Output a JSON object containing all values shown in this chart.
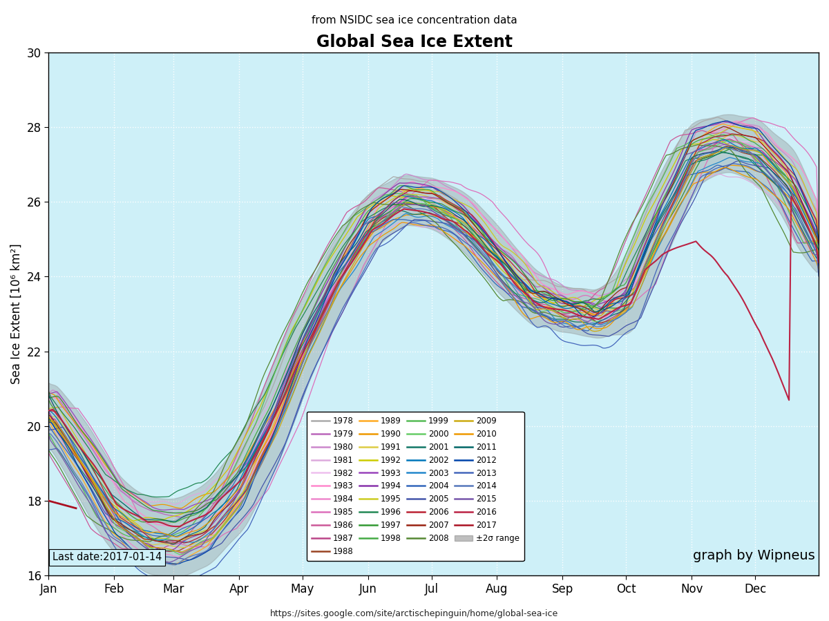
{
  "title": "Global Sea Ice Extent",
  "subtitle": "from NSIDC sea ice concentration data",
  "ylabel": "Sea Ice Extent [10⁶ km²]",
  "ylim": [
    16,
    30
  ],
  "yticks": [
    16,
    18,
    20,
    22,
    24,
    26,
    28,
    30
  ],
  "background_color": "#cef0f8",
  "last_date": "Last date:2017-01-14",
  "url": "https://sites.google.com/site/arctischepinguin/home/global-sea-ice",
  "graph_by": "graph by Wipneus",
  "months": [
    "Jan",
    "Feb",
    "Mar",
    "Apr",
    "May",
    "Jun",
    "Jul",
    "Aug",
    "Sep",
    "Oct",
    "Nov",
    "Dec"
  ],
  "month_starts": [
    0,
    31,
    59,
    90,
    120,
    151,
    181,
    212,
    243,
    273,
    304,
    334
  ],
  "year_colors": {
    "1978": "#aaaaaa",
    "1979": "#bb66bb",
    "1980": "#cc88cc",
    "1981": "#ddaadd",
    "1982": "#eec0ee",
    "1983": "#ff88cc",
    "1984": "#ee88cc",
    "1985": "#dd70bb",
    "1986": "#cc5898",
    "1987": "#bb4488",
    "1988": "#994422",
    "1989": "#ffaa22",
    "1990": "#ee9900",
    "1991": "#ddcc44",
    "1992": "#cccc00",
    "1993": "#9944bb",
    "1994": "#8833aa",
    "1995": "#cccc22",
    "1996": "#228855",
    "1997": "#339933",
    "1998": "#44aa44",
    "1999": "#55bb55",
    "2000": "#66cc66",
    "2001": "#117766",
    "2002": "#0077bb",
    "2003": "#2288cc",
    "2004": "#3366bb",
    "2005": "#4455aa",
    "2006": "#bb2233",
    "2007": "#992211",
    "2008": "#558833",
    "2009": "#ccaa11",
    "2010": "#ee9900",
    "2011": "#006666",
    "2012": "#0044aa",
    "2013": "#4466bb",
    "2014": "#5577bb",
    "2015": "#7755aa",
    "2016": "#bb2244",
    "2017": "#aa1122"
  },
  "base_curve_days": [
    0,
    15,
    30,
    45,
    60,
    75,
    90,
    105,
    120,
    135,
    151,
    166,
    181,
    196,
    212,
    227,
    243,
    258,
    273,
    288,
    304,
    319,
    334,
    349,
    364
  ],
  "base_curve_vals": [
    20.5,
    19.2,
    17.8,
    17.2,
    17.1,
    17.5,
    18.5,
    20.2,
    22.3,
    24.0,
    25.5,
    26.1,
    26.0,
    25.5,
    24.5,
    23.5,
    23.2,
    23.0,
    23.5,
    25.5,
    27.3,
    27.6,
    27.4,
    26.5,
    24.8
  ]
}
